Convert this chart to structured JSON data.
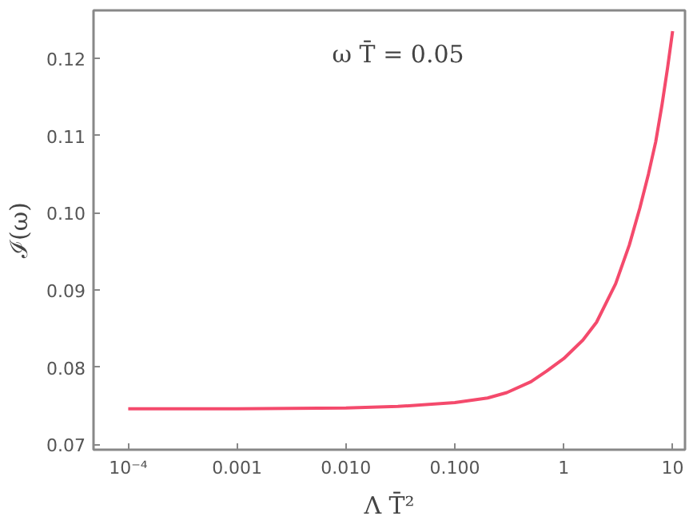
{
  "chart_data": {
    "type": "line",
    "xlabel": "Λ T̄²",
    "ylabel": "ℐ(ω)",
    "annotations": [
      "ω T̄ = 0.05"
    ],
    "log": "x",
    "grid": false,
    "x": [
      0.0001,
      0.001,
      0.01,
      0.03,
      0.1,
      0.2,
      0.3,
      0.5,
      0.7,
      1,
      1.5,
      2,
      3,
      4,
      5,
      6,
      7,
      8,
      9,
      10
    ],
    "series": [
      {
        "color": "#f44a6c",
        "values": [
          0.0746,
          0.0746,
          0.0747,
          0.0749,
          0.0754,
          0.076,
          0.0767,
          0.0781,
          0.0795,
          0.0811,
          0.0835,
          0.0858,
          0.0908,
          0.0958,
          0.1006,
          0.105,
          0.1092,
          0.114,
          0.1188,
          0.1235
        ]
      }
    ],
    "xlim": [
      4.8e-05,
      13
    ],
    "ylim": [
      0.0693,
      0.1262
    ],
    "xticks": [
      {
        "value": 0.0001,
        "label": "10⁻⁴"
      },
      {
        "value": 0.001,
        "label": "0.001"
      },
      {
        "value": 0.01,
        "label": "0.010"
      },
      {
        "value": 0.1,
        "label": "0.100"
      },
      1,
      10
    ],
    "yticks": [
      {
        "value": 0.07,
        "label": "0.07"
      },
      {
        "value": 0.08,
        "label": "0.08"
      },
      {
        "value": 0.09,
        "label": "0.09"
      },
      {
        "value": 0.1,
        "label": "0.10"
      },
      {
        "value": 0.11,
        "label": "0.11"
      },
      {
        "value": 0.12,
        "label": "0.12"
      }
    ]
  }
}
